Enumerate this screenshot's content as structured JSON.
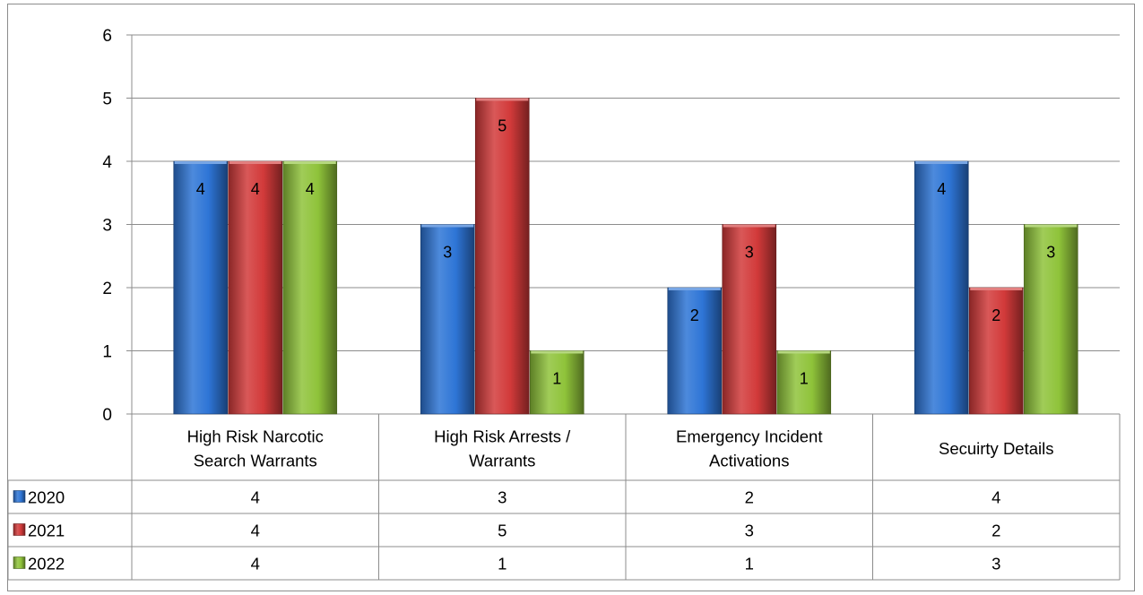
{
  "chart_data": {
    "type": "bar",
    "categories": [
      [
        "High Risk Narcotic",
        "Search Warrants"
      ],
      [
        "High Risk Arrests /",
        "Warrants"
      ],
      [
        "Emergency Incident",
        "Activations"
      ],
      [
        "Secuirty Details"
      ]
    ],
    "series": [
      {
        "name": "2020",
        "color": "#2e75d6",
        "values": [
          4,
          3,
          2,
          4
        ]
      },
      {
        "name": "2021",
        "color": "#d23a3a",
        "values": [
          4,
          5,
          3,
          2
        ]
      },
      {
        "name": "2022",
        "color": "#8fc33a",
        "values": [
          4,
          1,
          1,
          3
        ]
      }
    ],
    "ylim": [
      0,
      6
    ],
    "yticks": [
      0,
      1,
      2,
      3,
      4,
      5,
      6
    ],
    "grid": true,
    "legend": "data-table",
    "data_labels": true
  }
}
